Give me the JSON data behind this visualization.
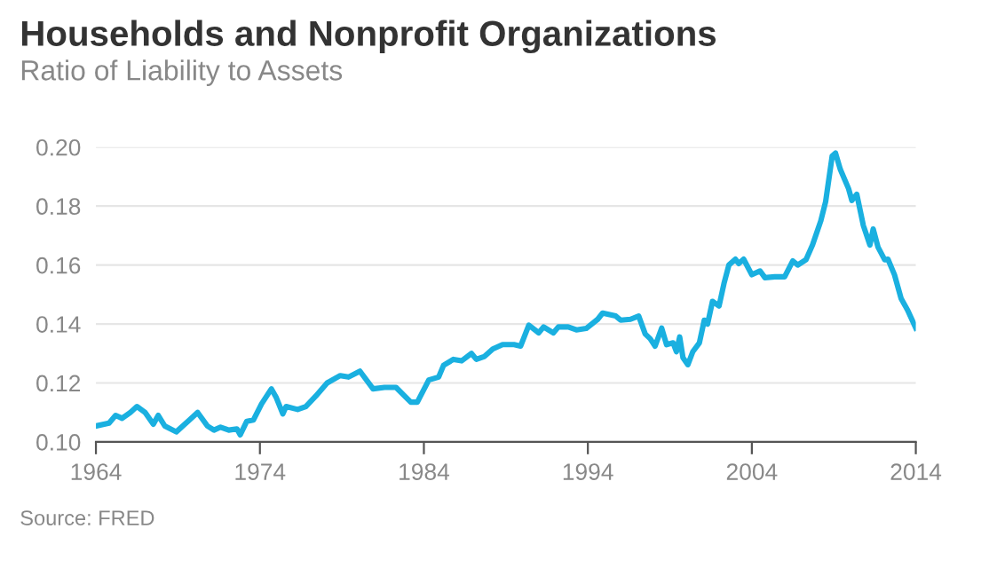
{
  "chart_data": {
    "type": "line",
    "title": "Households and Nonprofit Organizations",
    "subtitle": "Ratio of Liability to Assets",
    "annotations": [
      "Source: FRED"
    ],
    "series": [
      {
        "color": "#1ab0e0",
        "x": [
          1964.0,
          1964.8,
          1965.2,
          1965.6,
          1966.1,
          1966.5,
          1967.0,
          1967.5,
          1967.8,
          1968.2,
          1968.9,
          1969.7,
          1970.2,
          1970.8,
          1971.2,
          1971.6,
          1972.1,
          1972.6,
          1972.8,
          1973.2,
          1973.6,
          1974.1,
          1974.7,
          1975.0,
          1975.4,
          1975.6,
          1976.3,
          1976.8,
          1977.4,
          1978.1,
          1978.9,
          1979.4,
          1980.1,
          1980.9,
          1981.6,
          1982.3,
          1983.2,
          1983.6,
          1984.3,
          1984.9,
          1985.2,
          1985.8,
          1986.3,
          1986.9,
          1987.2,
          1987.7,
          1988.2,
          1988.8,
          1989.5,
          1989.9,
          1990.4,
          1991.0,
          1991.3,
          1991.9,
          1992.2,
          1992.8,
          1993.3,
          1993.9,
          1994.6,
          1994.9,
          1995.7,
          1996.0,
          1996.6,
          1997.1,
          1997.5,
          1997.8,
          1998.1,
          1998.5,
          1998.8,
          1999.2,
          1999.4,
          1999.6,
          1999.8,
          2000.1,
          2000.4,
          2000.8,
          2001.1,
          2001.3,
          2001.6,
          2002.0,
          2002.3,
          2002.6,
          2003.0,
          2003.2,
          2003.5,
          2004.0,
          2004.5,
          2004.8,
          2005.4,
          2006.0,
          2006.5,
          2006.8,
          2007.3,
          2007.7,
          2008.2,
          2008.5,
          2008.9,
          2009.1,
          2009.4,
          2009.9,
          2010.1,
          2010.4,
          2010.8,
          2011.2,
          2011.4,
          2011.7,
          2012.1,
          2012.3,
          2012.7,
          2013.1,
          2013.5,
          2014.0
        ],
        "values": [
          0.1054,
          0.1064,
          0.109,
          0.108,
          0.11,
          0.112,
          0.11,
          0.106,
          0.109,
          0.1054,
          0.1034,
          0.1074,
          0.11,
          0.1054,
          0.104,
          0.105,
          0.104,
          0.1044,
          0.1024,
          0.107,
          0.1074,
          0.1129,
          0.118,
          0.115,
          0.1095,
          0.112,
          0.111,
          0.112,
          0.1155,
          0.12,
          0.1225,
          0.122,
          0.124,
          0.118,
          0.1185,
          0.1185,
          0.1135,
          0.1135,
          0.121,
          0.122,
          0.126,
          0.128,
          0.1275,
          0.13,
          0.128,
          0.129,
          0.1315,
          0.133,
          0.133,
          0.1325,
          0.1396,
          0.137,
          0.139,
          0.137,
          0.139,
          0.139,
          0.138,
          0.1385,
          0.1416,
          0.1437,
          0.1427,
          0.1413,
          0.1416,
          0.1427,
          0.1366,
          0.135,
          0.1325,
          0.1386,
          0.133,
          0.1336,
          0.1306,
          0.1356,
          0.1286,
          0.1262,
          0.1306,
          0.1336,
          0.1413,
          0.14,
          0.1477,
          0.1461,
          0.1537,
          0.16,
          0.162,
          0.1605,
          0.162,
          0.1567,
          0.158,
          0.1557,
          0.156,
          0.156,
          0.1614,
          0.16,
          0.1618,
          0.1668,
          0.1749,
          0.1815,
          0.197,
          0.198,
          0.1924,
          0.1859,
          0.1819,
          0.184,
          0.1734,
          0.1668,
          0.1722,
          0.166,
          0.1618,
          0.162,
          0.1567,
          0.1487,
          0.1447,
          0.1386
        ]
      }
    ],
    "xlim": [
      1964,
      2014
    ],
    "xticks": [
      1964,
      1974,
      1984,
      1994,
      2004,
      2014
    ],
    "ylim": [
      0.1,
      0.2
    ],
    "yticks": [
      {
        "value": 0.1,
        "label": "0.10"
      },
      {
        "value": 0.12,
        "label": "0.12"
      },
      {
        "value": 0.14,
        "label": "0.14"
      },
      {
        "value": 0.16,
        "label": "0.16"
      },
      {
        "value": 0.18,
        "label": "0.18"
      },
      {
        "value": 0.2,
        "label": "0.20"
      }
    ],
    "grid": "y",
    "marker": "none",
    "line_style": "solid"
  }
}
